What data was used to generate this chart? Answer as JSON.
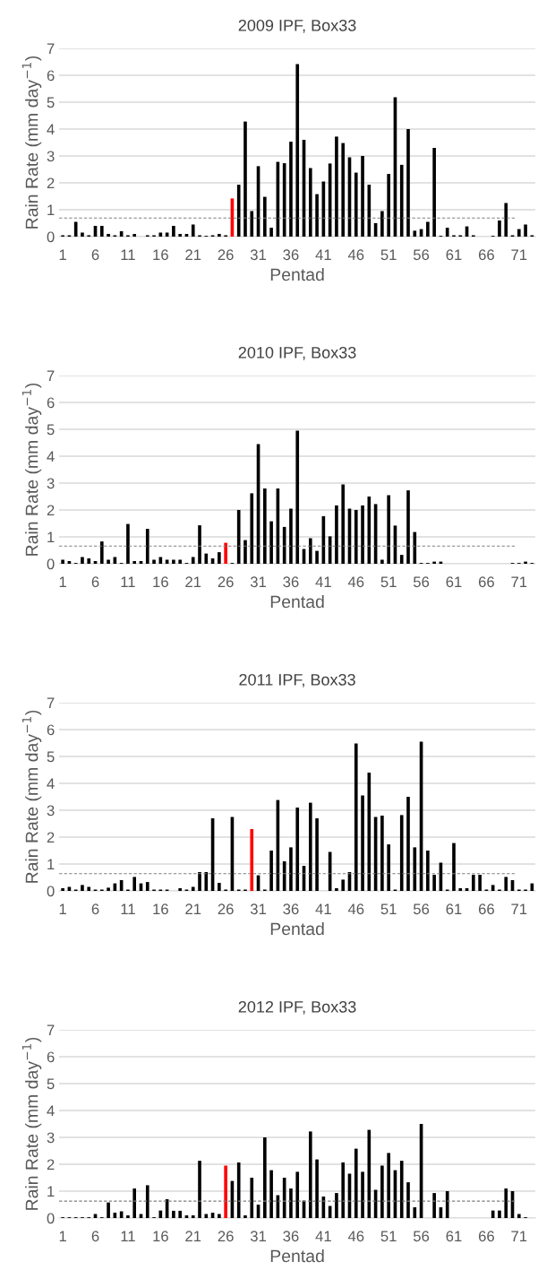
{
  "chart_data": [
    {
      "type": "bar",
      "title": "2009 IPF, Box33",
      "xlabel": "Pentad",
      "ylabel": "Rain Rate (mm day$^{−1}$)",
      "categories": [
        "1",
        null,
        null,
        null,
        null,
        "6",
        null,
        null,
        null,
        null,
        "11",
        null,
        null,
        null,
        null,
        "16",
        null,
        null,
        null,
        null,
        "21",
        null,
        null,
        null,
        null,
        "26",
        null,
        null,
        null,
        null,
        "31",
        null,
        null,
        null,
        null,
        "36",
        null,
        null,
        null,
        null,
        "41",
        null,
        null,
        null,
        null,
        "46",
        null,
        null,
        null,
        null,
        "51",
        null,
        null,
        null,
        null,
        "56",
        null,
        null,
        null,
        null,
        "61",
        null,
        null,
        null,
        null,
        "66",
        null,
        null,
        null,
        null,
        "71",
        null,
        null
      ],
      "values": [
        0.05,
        0.05,
        0.55,
        0.15,
        0.05,
        0.4,
        0.4,
        0.1,
        0.05,
        0.2,
        0.05,
        0.1,
        0,
        0.05,
        0.05,
        0.15,
        0.15,
        0.4,
        0.1,
        0.1,
        0.45,
        0.05,
        0.03,
        0.05,
        0.1,
        0.05,
        1.42,
        1.93,
        4.28,
        0.95,
        2.62,
        1.48,
        0.33,
        2.78,
        2.73,
        3.53,
        6.42,
        3.6,
        2.55,
        1.58,
        2.05,
        2.72,
        3.72,
        3.48,
        2.95,
        2.38,
        3.0,
        1.93,
        0.5,
        0.95,
        2.33,
        5.18,
        2.67,
        4.0,
        0.22,
        0.28,
        0.55,
        3.3,
        0.03,
        0.33,
        0.05,
        0.05,
        0.38,
        0.05,
        0,
        0,
        0.03,
        0.6,
        1.25,
        0.05,
        0.28,
        0.45,
        0.05
      ],
      "colors": [
        "#000000",
        "#000000",
        "#000000",
        "#000000",
        "#000000",
        "#000000",
        "#000000",
        "#000000",
        "#000000",
        "#000000",
        "#000000",
        "#000000",
        "#000000",
        "#000000",
        "#000000",
        "#000000",
        "#000000",
        "#000000",
        "#000000",
        "#000000",
        "#000000",
        "#000000",
        "#000000",
        "#000000",
        "#000000",
        "#000000",
        "#ff0000",
        "#000000",
        "#000000",
        "#000000",
        "#000000",
        "#000000",
        "#000000",
        "#000000",
        "#000000",
        "#000000",
        "#000000",
        "#000000",
        "#000000",
        "#000000",
        "#000000",
        "#000000",
        "#000000",
        "#000000",
        "#000000",
        "#000000",
        "#000000",
        "#000000",
        "#000000",
        "#000000",
        "#000000",
        "#000000",
        "#000000",
        "#000000",
        "#000000",
        "#000000",
        "#000000",
        "#000000",
        "#000000",
        "#000000",
        "#000000",
        "#000000",
        "#000000",
        "#000000",
        "#000000",
        "#000000",
        "#000000",
        "#000000",
        "#000000",
        "#000000",
        "#000000",
        "#000000",
        "#000000"
      ],
      "ylim": [
        0,
        7
      ],
      "yticks": [
        0,
        1,
        2,
        3,
        4,
        5,
        6,
        7
      ],
      "grid": "y",
      "ref_lines": [
        {
          "axis": "y",
          "value": 0.69,
          "color": "#7f7f7f",
          "line_style": "dashed"
        }
      ]
    },
    {
      "type": "bar",
      "title": "2010 IPF, Box33",
      "xlabel": "Pentad",
      "ylabel": "Rain Rate (mm day$^{−1}$)",
      "categories": [
        "1",
        null,
        null,
        null,
        null,
        "6",
        null,
        null,
        null,
        null,
        "11",
        null,
        null,
        null,
        null,
        "16",
        null,
        null,
        null,
        null,
        "21",
        null,
        null,
        null,
        null,
        "26",
        null,
        null,
        null,
        null,
        "31",
        null,
        null,
        null,
        null,
        "36",
        null,
        null,
        null,
        null,
        "41",
        null,
        null,
        null,
        null,
        "46",
        null,
        null,
        null,
        null,
        "51",
        null,
        null,
        null,
        null,
        "56",
        null,
        null,
        null,
        null,
        "61",
        null,
        null,
        null,
        null,
        "66",
        null,
        null,
        null,
        null,
        "71",
        null,
        null
      ],
      "values": [
        0.15,
        0.1,
        0.03,
        0.25,
        0.2,
        0.1,
        0.83,
        0.15,
        0.25,
        0.03,
        1.48,
        0.1,
        0.1,
        1.3,
        0.15,
        0.25,
        0.15,
        0.15,
        0.15,
        0.03,
        0.25,
        1.43,
        0.38,
        0.2,
        0.43,
        0.78,
        0.03,
        2.0,
        0.88,
        2.62,
        4.45,
        2.8,
        1.58,
        2.8,
        1.37,
        2.05,
        4.95,
        0.55,
        0.95,
        0.48,
        1.77,
        1.02,
        2.17,
        2.95,
        2.05,
        2.0,
        2.17,
        2.5,
        2.22,
        0.15,
        2.55,
        1.42,
        0.33,
        2.73,
        1.18,
        0.03,
        0.03,
        0.08,
        0.08,
        0,
        0,
        0,
        0,
        0,
        0,
        0,
        0,
        0,
        0,
        0.03,
        0.03,
        0.08,
        0.03
      ],
      "colors": [
        "#000000",
        "#000000",
        "#000000",
        "#000000",
        "#000000",
        "#000000",
        "#000000",
        "#000000",
        "#000000",
        "#000000",
        "#000000",
        "#000000",
        "#000000",
        "#000000",
        "#000000",
        "#000000",
        "#000000",
        "#000000",
        "#000000",
        "#000000",
        "#000000",
        "#000000",
        "#000000",
        "#000000",
        "#000000",
        "#ff0000",
        "#000000",
        "#000000",
        "#000000",
        "#000000",
        "#000000",
        "#000000",
        "#000000",
        "#000000",
        "#000000",
        "#000000",
        "#000000",
        "#000000",
        "#000000",
        "#000000",
        "#000000",
        "#000000",
        "#000000",
        "#000000",
        "#000000",
        "#000000",
        "#000000",
        "#000000",
        "#000000",
        "#000000",
        "#000000",
        "#000000",
        "#000000",
        "#000000",
        "#000000",
        "#000000",
        "#000000",
        "#000000",
        "#000000",
        "#000000",
        "#000000",
        "#000000",
        "#000000",
        "#000000",
        "#000000",
        "#000000",
        "#000000",
        "#000000",
        "#000000",
        "#000000",
        "#000000",
        "#000000",
        "#000000"
      ],
      "ylim": [
        0,
        7
      ],
      "yticks": [
        0,
        1,
        2,
        3,
        4,
        5,
        6,
        7
      ],
      "grid": "y",
      "ref_lines": [
        {
          "axis": "y",
          "value": 0.66,
          "color": "#7f7f7f",
          "line_style": "dashed"
        }
      ]
    },
    {
      "type": "bar",
      "title": "2011 IPF, Box33",
      "xlabel": "Pentad",
      "ylabel": "Rain Rate (mm day$^{−1}$)",
      "categories": [
        "1",
        null,
        null,
        null,
        null,
        "6",
        null,
        null,
        null,
        null,
        "11",
        null,
        null,
        null,
        null,
        "16",
        null,
        null,
        null,
        null,
        "21",
        null,
        null,
        null,
        null,
        "26",
        null,
        null,
        null,
        null,
        "31",
        null,
        null,
        null,
        null,
        "36",
        null,
        null,
        null,
        null,
        "41",
        null,
        null,
        null,
        null,
        "46",
        null,
        null,
        null,
        null,
        "51",
        null,
        null,
        null,
        null,
        "56",
        null,
        null,
        null,
        null,
        "61",
        null,
        null,
        null,
        null,
        "66",
        null,
        null,
        null,
        null,
        "71",
        null,
        null
      ],
      "values": [
        0.1,
        0.15,
        0.05,
        0.22,
        0.15,
        0.05,
        0.05,
        0.12,
        0.28,
        0.4,
        0.05,
        0.52,
        0.28,
        0.33,
        0.05,
        0.05,
        0.05,
        0,
        0.1,
        0.05,
        0.15,
        0.7,
        0.7,
        2.7,
        0.3,
        0.05,
        2.75,
        0.05,
        0.05,
        2.3,
        0.58,
        0.05,
        1.5,
        3.38,
        1.1,
        1.62,
        3.1,
        0.93,
        3.28,
        2.7,
        0,
        1.45,
        0.1,
        0.42,
        0.7,
        5.48,
        3.55,
        4.4,
        2.75,
        2.8,
        1.73,
        0.05,
        2.82,
        3.5,
        1.62,
        5.55,
        1.5,
        0.6,
        1.05,
        0.05,
        1.78,
        0.1,
        0.1,
        0.6,
        0.6,
        0.05,
        0.22,
        0.05,
        0.52,
        0.4,
        0.05,
        0.05,
        0.28
      ],
      "colors": [
        "#000000",
        "#000000",
        "#000000",
        "#000000",
        "#000000",
        "#000000",
        "#000000",
        "#000000",
        "#000000",
        "#000000",
        "#000000",
        "#000000",
        "#000000",
        "#000000",
        "#000000",
        "#000000",
        "#000000",
        "#000000",
        "#000000",
        "#000000",
        "#000000",
        "#000000",
        "#000000",
        "#000000",
        "#000000",
        "#000000",
        "#000000",
        "#000000",
        "#000000",
        "#ff0000",
        "#000000",
        "#000000",
        "#000000",
        "#000000",
        "#000000",
        "#000000",
        "#000000",
        "#000000",
        "#000000",
        "#000000",
        "#000000",
        "#000000",
        "#000000",
        "#000000",
        "#000000",
        "#000000",
        "#000000",
        "#000000",
        "#000000",
        "#000000",
        "#000000",
        "#000000",
        "#000000",
        "#000000",
        "#000000",
        "#000000",
        "#000000",
        "#000000",
        "#000000",
        "#000000",
        "#000000",
        "#000000",
        "#000000",
        "#000000",
        "#000000",
        "#000000",
        "#000000",
        "#000000",
        "#000000",
        "#000000",
        "#000000",
        "#000000",
        "#000000"
      ],
      "ylim": [
        0,
        7
      ],
      "yticks": [
        0,
        1,
        2,
        3,
        4,
        5,
        6,
        7
      ],
      "grid": "y",
      "ref_lines": [
        {
          "axis": "y",
          "value": 0.64,
          "color": "#7f7f7f",
          "line_style": "dashed"
        }
      ]
    },
    {
      "type": "bar",
      "title": "2012 IPF, Box33",
      "xlabel": "Pentad",
      "ylabel": "Rain Rate (mm day$^{−1}$)",
      "categories": [
        "1",
        null,
        null,
        null,
        null,
        "6",
        null,
        null,
        null,
        null,
        "11",
        null,
        null,
        null,
        null,
        "16",
        null,
        null,
        null,
        null,
        "21",
        null,
        null,
        null,
        null,
        "26",
        null,
        null,
        null,
        null,
        "31",
        null,
        null,
        null,
        null,
        "36",
        null,
        null,
        null,
        null,
        "41",
        null,
        null,
        null,
        null,
        "46",
        null,
        null,
        null,
        null,
        "51",
        null,
        null,
        null,
        null,
        "56",
        null,
        null,
        null,
        null,
        "61",
        null,
        null,
        null,
        null,
        "66",
        null,
        null,
        null,
        null,
        "71",
        null,
        null
      ],
      "values": [
        0.03,
        0.03,
        0.03,
        0.03,
        0.03,
        0.15,
        0.03,
        0.58,
        0.2,
        0.25,
        0.1,
        1.1,
        0.15,
        1.22,
        0.03,
        0.28,
        0.7,
        0.27,
        0.27,
        0.1,
        0.1,
        2.13,
        0.15,
        0.2,
        0.15,
        1.95,
        1.38,
        2.07,
        0.1,
        1.5,
        0.5,
        3.0,
        1.78,
        0.85,
        1.5,
        1.1,
        1.72,
        0.65,
        3.22,
        2.18,
        0.8,
        0.45,
        0.93,
        2.07,
        1.65,
        2.58,
        1.72,
        3.28,
        1.05,
        1.95,
        2.42,
        1.78,
        2.13,
        1.33,
        0.4,
        3.5,
        0,
        0.93,
        0.4,
        1.0,
        0,
        0,
        0,
        0,
        0,
        0,
        0.28,
        0.28,
        1.1,
        1.0,
        0.15,
        0.03,
        0
      ],
      "colors": [
        "#000000",
        "#000000",
        "#000000",
        "#000000",
        "#000000",
        "#000000",
        "#000000",
        "#000000",
        "#000000",
        "#000000",
        "#000000",
        "#000000",
        "#000000",
        "#000000",
        "#000000",
        "#000000",
        "#000000",
        "#000000",
        "#000000",
        "#000000",
        "#000000",
        "#000000",
        "#000000",
        "#000000",
        "#000000",
        "#ff0000",
        "#000000",
        "#000000",
        "#000000",
        "#000000",
        "#000000",
        "#000000",
        "#000000",
        "#000000",
        "#000000",
        "#000000",
        "#000000",
        "#000000",
        "#000000",
        "#000000",
        "#000000",
        "#000000",
        "#000000",
        "#000000",
        "#000000",
        "#000000",
        "#000000",
        "#000000",
        "#000000",
        "#000000",
        "#000000",
        "#000000",
        "#000000",
        "#000000",
        "#000000",
        "#000000",
        "#000000",
        "#000000",
        "#000000",
        "#000000",
        "#000000",
        "#000000",
        "#000000",
        "#000000",
        "#000000",
        "#000000",
        "#000000",
        "#000000",
        "#000000",
        "#000000",
        "#000000",
        "#000000",
        "#000000"
      ],
      "ylim": [
        0,
        7
      ],
      "yticks": [
        0,
        1,
        2,
        3,
        4,
        5,
        6,
        7
      ],
      "grid": "y",
      "ref_lines": [
        {
          "axis": "y",
          "value": 0.63,
          "color": "#7f7f7f",
          "line_style": "dashed"
        }
      ]
    }
  ]
}
